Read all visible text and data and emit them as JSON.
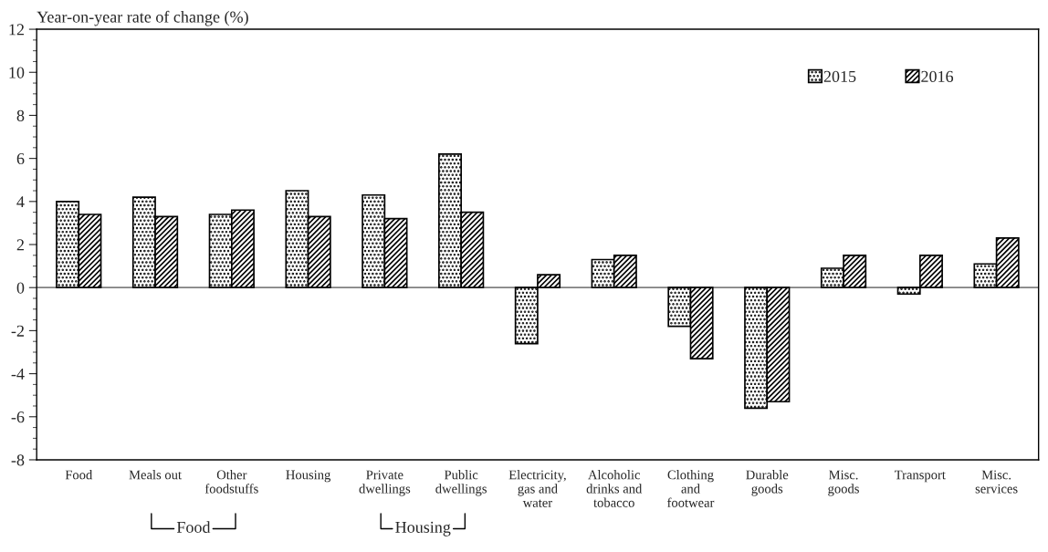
{
  "chart_data": {
    "type": "bar",
    "ylabel": "Year-on-year rate of change (%)",
    "categories": [
      "Food",
      "Meals out",
      "Other\nfoodstuffs",
      "Housing",
      "Private\ndwellings",
      "Public\ndwellings",
      "Electricity,\ngas and\nwater",
      "Alcoholic\ndrinks and\ntobacco",
      "Clothing\nand\nfootwear",
      "Durable\ngoods",
      "Misc.\ngoods",
      "Transport",
      "Misc.\nservices"
    ],
    "series": [
      {
        "name": "2015",
        "color": "#000000",
        "values": [
          4.0,
          4.2,
          3.4,
          4.5,
          4.3,
          6.2,
          -2.6,
          1.3,
          -1.8,
          -5.6,
          0.9,
          -0.3,
          1.1
        ]
      },
      {
        "name": "2016",
        "color": "#000000",
        "values": [
          3.4,
          3.3,
          3.6,
          3.3,
          3.2,
          3.5,
          0.6,
          1.5,
          -3.3,
          -5.3,
          1.5,
          1.5,
          2.3
        ]
      }
    ],
    "ylim": [
      -8,
      12
    ],
    "yticks": [
      -8,
      -6,
      -4,
      -2,
      0,
      2,
      4,
      6,
      8,
      10,
      12
    ],
    "ref_lines": [
      {
        "axis": "y",
        "value": 0,
        "color": "#808080"
      }
    ],
    "annotations": [
      "Food",
      "Housing"
    ],
    "legend": "top right",
    "grid": false
  }
}
